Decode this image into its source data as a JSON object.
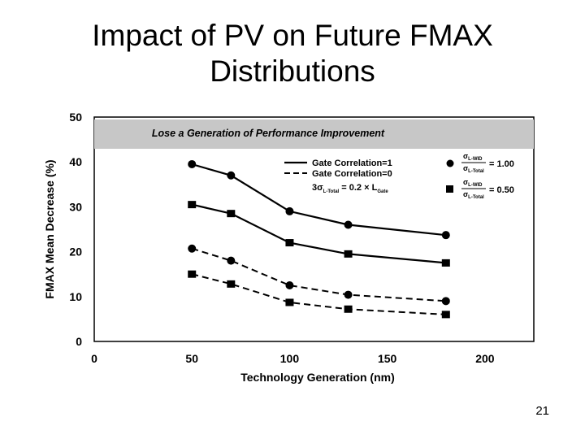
{
  "slide": {
    "title_line1": "Impact of PV on Future FMAX",
    "title_line2": "Distributions",
    "page_number": "21"
  },
  "chart_data": {
    "type": "line",
    "banner": "Lose a Generation of Performance Improvement",
    "xlabel": "Technology Generation (nm)",
    "ylabel": "FMAX Mean Decrease (%)",
    "xlim": [
      0,
      225
    ],
    "ylim": [
      0,
      50
    ],
    "x_ticks": [
      "0",
      "50",
      "100",
      "150",
      "200"
    ],
    "y_ticks": [
      "0",
      "10",
      "20",
      "30",
      "40",
      "50"
    ],
    "x": [
      50,
      70,
      100,
      130,
      180
    ],
    "series": [
      {
        "values": [
          39.5,
          37,
          29,
          26,
          23.7
        ],
        "line": "solid",
        "marker": "circle"
      },
      {
        "values": [
          30.5,
          28.5,
          22,
          19.5,
          17.5
        ],
        "line": "solid",
        "marker": "square"
      },
      {
        "values": [
          20.7,
          18,
          12.5,
          10.4,
          9
        ],
        "line": "dashed",
        "marker": "circle"
      },
      {
        "values": [
          15,
          12.8,
          8.7,
          7.2,
          6
        ],
        "line": "dashed",
        "marker": "square"
      }
    ],
    "legend": {
      "solid_label": "Gate Correlation=1",
      "dashed_label": "Gate Correlation=0",
      "condition_main": "3σ",
      "condition_sub1": "L-Total",
      "condition_mid": " = 0.2 × L",
      "condition_sub2": "Gate",
      "sigma": "σ",
      "ratio_num_sub": "L-WID",
      "ratio_den_sub": "L-Total",
      "ratio_circle_value": "= 1.00",
      "ratio_square_value": "= 0.50"
    },
    "grid": false
  }
}
